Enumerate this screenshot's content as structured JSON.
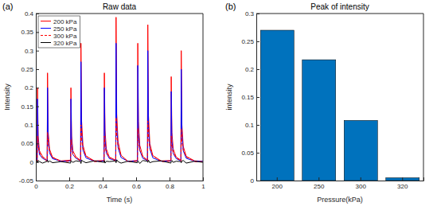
{
  "chart_data": [
    {
      "type": "line",
      "annotation": "(a)",
      "title": "Raw data",
      "x_label": "Time (s)",
      "y_label": "Intensity",
      "x": [
        0,
        0.008,
        0.01,
        0.014,
        0.022,
        0.04,
        0.068,
        0.07,
        0.074,
        0.082,
        0.1,
        0.15,
        0.208,
        0.21,
        0.214,
        0.222,
        0.24,
        0.268,
        0.27,
        0.274,
        0.282,
        0.3,
        0.35,
        0.408,
        0.41,
        0.414,
        0.422,
        0.44,
        0.478,
        0.48,
        0.484,
        0.492,
        0.51,
        0.55,
        0.608,
        0.61,
        0.614,
        0.622,
        0.64,
        0.668,
        0.67,
        0.674,
        0.682,
        0.7,
        0.75,
        0.808,
        0.81,
        0.814,
        0.822,
        0.84,
        0.868,
        0.87,
        0.874,
        0.882,
        0.9,
        0.95,
        1
      ],
      "series": [
        {
          "name": "200 kPa",
          "color": "#ff0000",
          "line_style": "solid",
          "values": [
            0.003,
            0.004,
            0.2,
            0.07,
            0.03,
            0.015,
            0.004,
            0.24,
            0.08,
            0.035,
            0.012,
            0.003,
            0.005,
            0.2,
            0.07,
            0.03,
            0.014,
            0.004,
            0.32,
            0.11,
            0.045,
            0.016,
            0.003,
            0.004,
            0.24,
            0.085,
            0.035,
            0.013,
            0.005,
            0.39,
            0.13,
            0.055,
            0.018,
            0.002,
            0.004,
            0.32,
            0.11,
            0.045,
            0.015,
            0.005,
            0.37,
            0.125,
            0.05,
            0.017,
            0.003,
            0.004,
            0.23,
            0.08,
            0.035,
            0.013,
            0.005,
            0.3,
            0.1,
            0.042,
            0.015,
            0.003,
            0.002
          ]
        },
        {
          "name": "250 kPa",
          "color": "#0000ff",
          "line_style": "solid",
          "values": [
            0.002,
            0.003,
            0.17,
            0.05,
            0.02,
            0.01,
            0.003,
            0.2,
            0.06,
            0.024,
            0.009,
            0.002,
            0.003,
            0.17,
            0.05,
            0.02,
            0.01,
            0.003,
            0.27,
            0.08,
            0.032,
            0.011,
            0.002,
            0.003,
            0.2,
            0.06,
            0.024,
            0.009,
            0.004,
            0.32,
            0.095,
            0.038,
            0.012,
            0.002,
            0.003,
            0.26,
            0.078,
            0.031,
            0.01,
            0.004,
            0.3,
            0.09,
            0.036,
            0.011,
            0.002,
            0.003,
            0.19,
            0.057,
            0.023,
            0.009,
            0.003,
            0.25,
            0.075,
            0.03,
            0.01,
            0.002,
            0.002
          ]
        },
        {
          "name": "300 kPa",
          "color": "#ff0000",
          "line_style": "dashed",
          "values": [
            0.001,
            0.002,
            0.07,
            0.042,
            0.025,
            0.012,
            0.002,
            0.08,
            0.048,
            0.028,
            0.013,
            0.001,
            0.002,
            0.06,
            0.036,
            0.021,
            0.011,
            0.003,
            0.1,
            0.06,
            0.035,
            0.016,
            0.001,
            0.002,
            0.07,
            0.042,
            0.025,
            0.012,
            0.003,
            0.12,
            0.072,
            0.042,
            0.018,
            0.001,
            0.002,
            0.09,
            0.054,
            0.032,
            0.014,
            0.003,
            0.11,
            0.066,
            0.038,
            0.017,
            0.001,
            0.002,
            0.07,
            0.042,
            0.025,
            0.012,
            0.002,
            0.09,
            0.054,
            0.032,
            0.014,
            0.001,
            0.001
          ]
        },
        {
          "name": "320 kPa",
          "color": "#000000",
          "line_style": "solid",
          "values": [
            0.002,
            0.003,
            -0.002,
            0.004,
            0.001,
            -0.003,
            0.002,
            0.005,
            -0.001,
            0.003,
            -0.002,
            0.001,
            -0.003,
            0.004,
            0.002,
            -0.001,
            0.003,
            0.001,
            -0.004,
            0.005,
            0.002,
            -0.002,
            0.003,
            -0.001,
            0.004,
            -0.003,
            0.002,
            0.001,
            0.003,
            -0.002,
            0.006,
            0.001,
            -0.003,
            0.002,
            -0.002,
            0.003,
            0.001,
            -0.004,
            0.004,
            0.002,
            -0.001,
            0.005,
            -0.002,
            0.001,
            0.003,
            -0.003,
            0.002,
            0.004,
            -0.001,
            0.002,
            0.001,
            -0.002,
            0.003,
            0.004,
            -0.003,
            0.002,
            -0.001
          ]
        }
      ],
      "xlim": [
        0,
        1
      ],
      "xticks": [
        0,
        0.2,
        0.4,
        0.6,
        0.8,
        1
      ],
      "ylim": [
        -0.05,
        0.4
      ],
      "yticks": [
        -0.05,
        0,
        0.05,
        0.1,
        0.15,
        0.2,
        0.25,
        0.3,
        0.35,
        0.4
      ],
      "legend": "upper-left",
      "grid": false
    },
    {
      "type": "bar",
      "annotation": "(b)",
      "title": "Peak of intensity",
      "x_label": "Pressure(kPa)",
      "y_label": "intensity",
      "categories": [
        "200",
        "250",
        "300",
        "320"
      ],
      "values": [
        0.27,
        0.217,
        0.108,
        0.005
      ],
      "color": "#0072bd",
      "ylim": [
        0,
        0.3
      ],
      "yticks": [
        0,
        0.05,
        0.1,
        0.15,
        0.2,
        0.25,
        0.3
      ],
      "grid": false
    }
  ]
}
